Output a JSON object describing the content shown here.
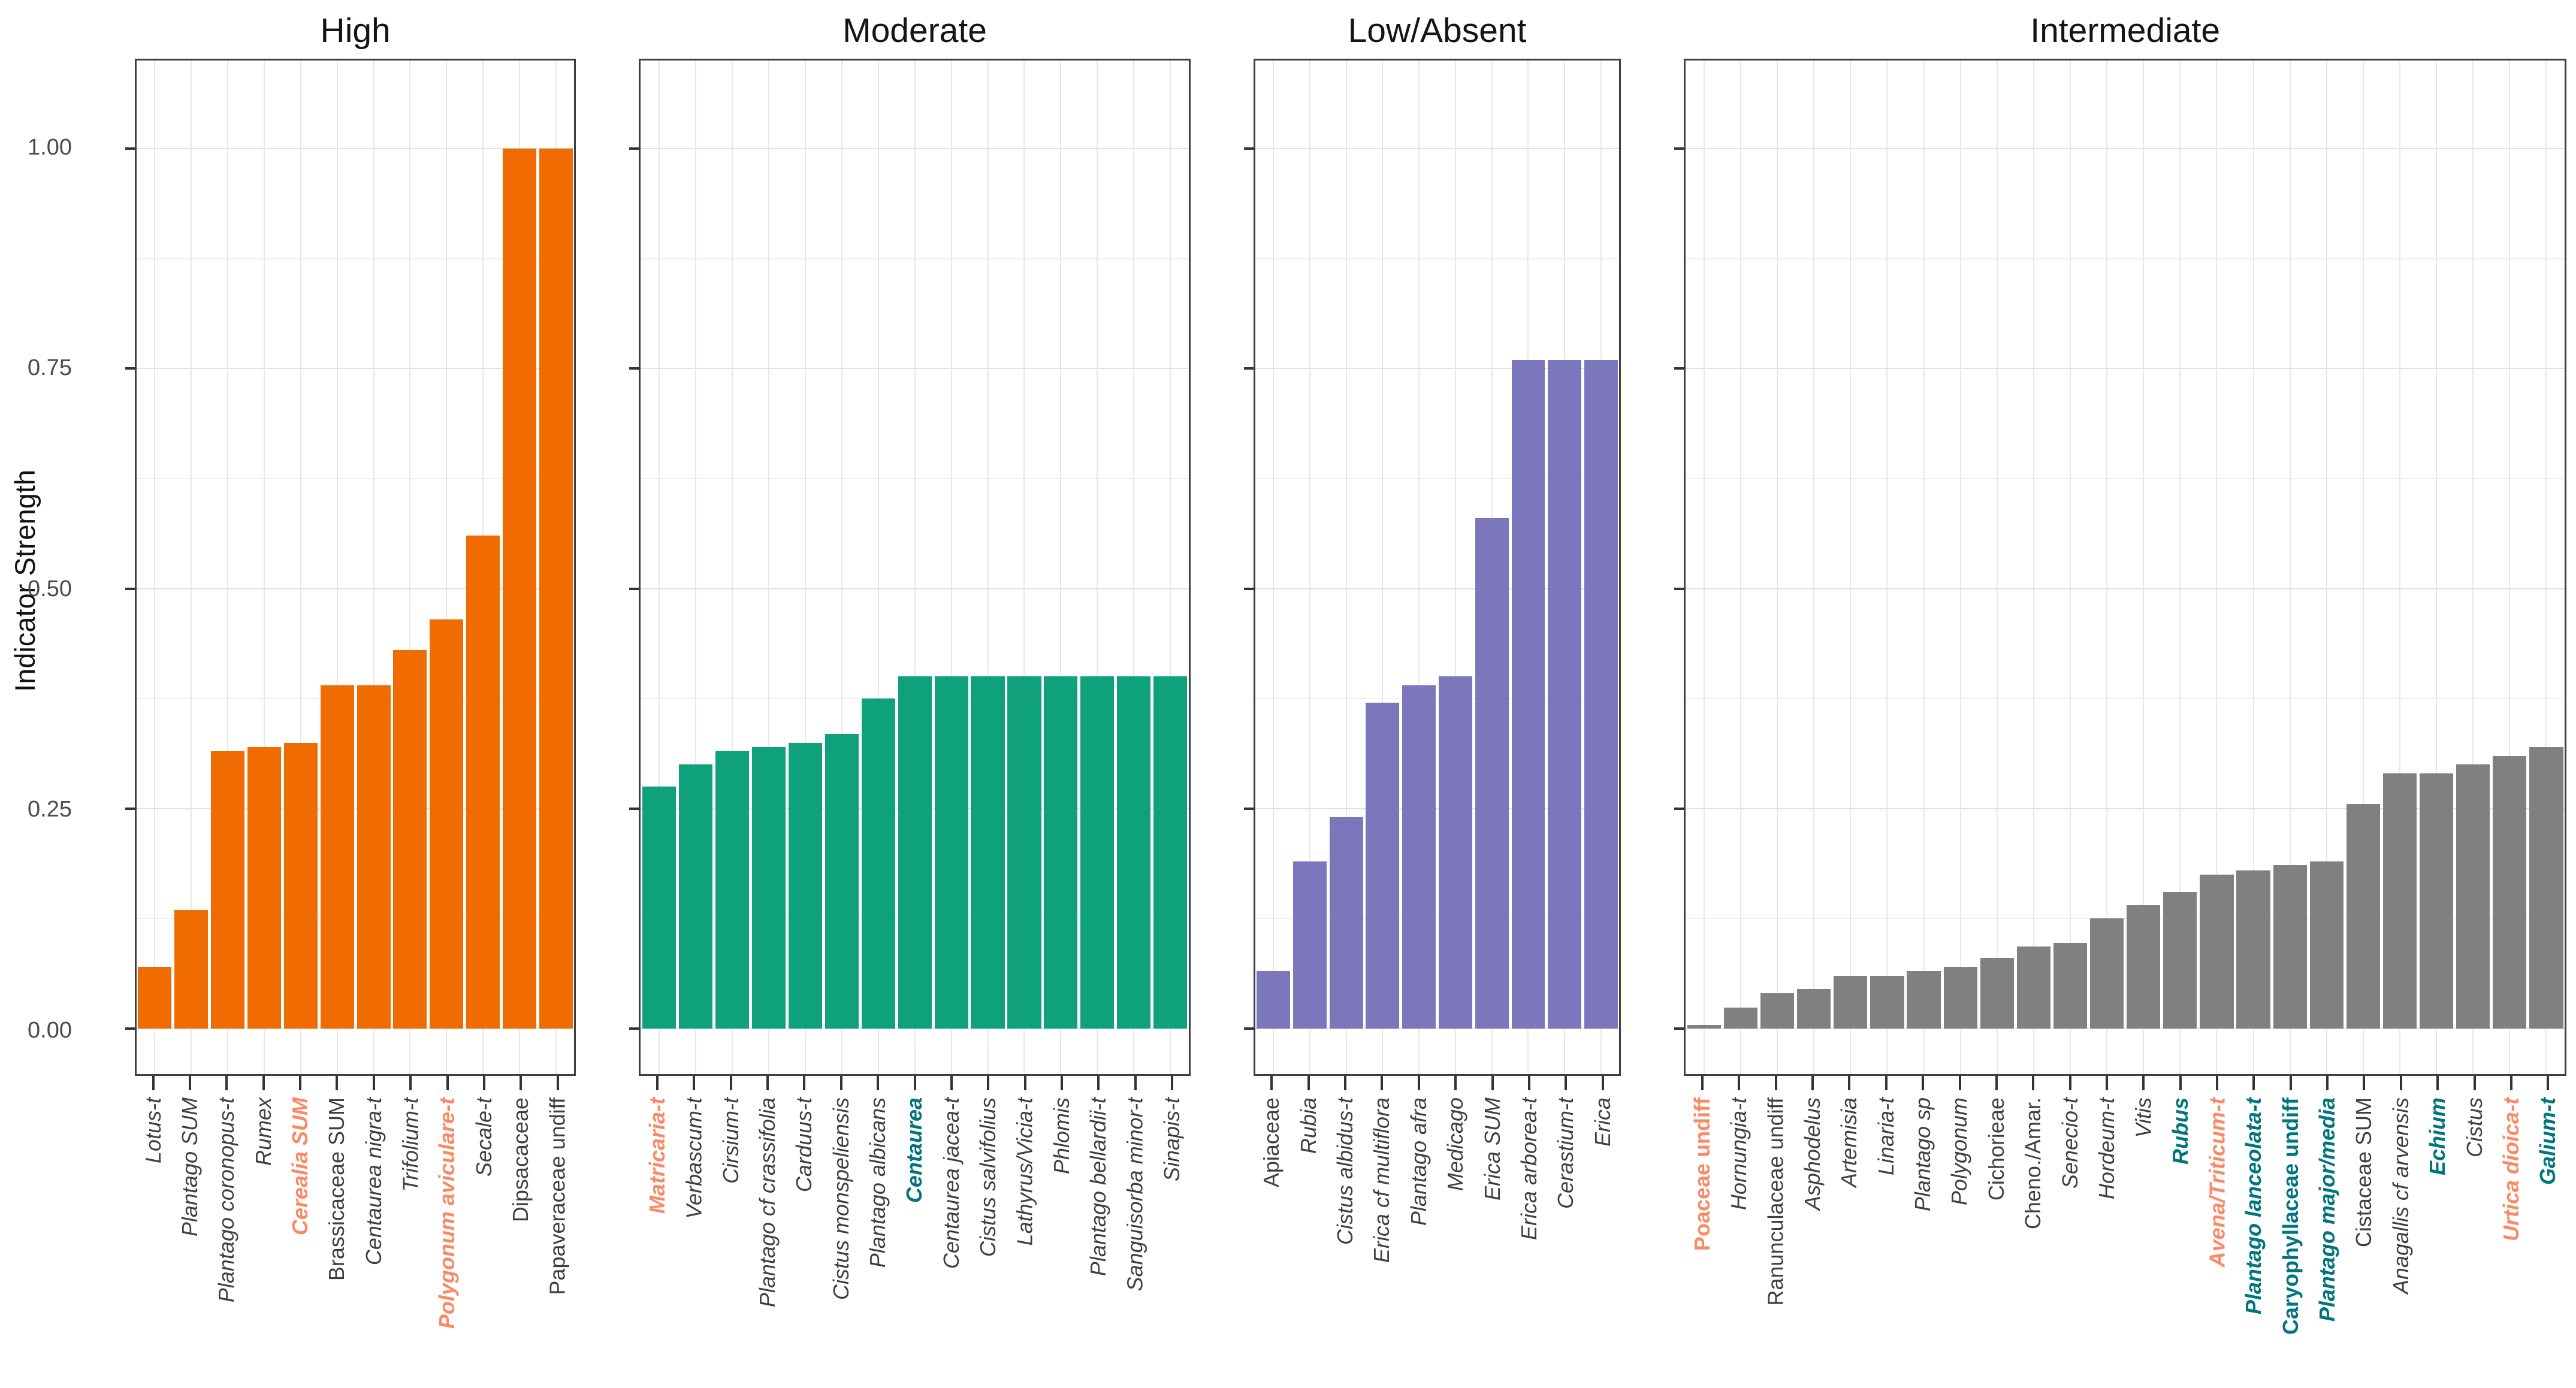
{
  "figure": {
    "y_axis_title": "Indicator Strength",
    "y_ticks": [
      {
        "label": "0.00",
        "v": 0
      },
      {
        "label": "0.25",
        "v": 0.25
      },
      {
        "label": "0.50",
        "v": 0.5
      },
      {
        "label": "0.75",
        "v": 0.75
      },
      {
        "label": "1.00",
        "v": 1
      }
    ]
  },
  "colors": {
    "axis_text": "#4a4a4a",
    "label_default": "#3f3f3f",
    "emphasis_orange": "#fa8a66",
    "emphasis_teal": "#00757d",
    "grid_major": "#e2e2e2",
    "grid_minor": "#f0f0f0",
    "panel_border": "#3f3f3f"
  },
  "chart_data": {
    "type": "bar",
    "ylabel": "Indicator Strength",
    "ylim": [
      0,
      1.05
    ],
    "grid": true,
    "legend_position": "none",
    "panels": [
      {
        "title": "High",
        "bar_color": "#f06c02",
        "bars": [
          {
            "label": "Lotus-t",
            "value": 0.07,
            "italic": true,
            "emphasis": null
          },
          {
            "label": "Plantago SUM",
            "value": 0.135,
            "italic": true,
            "emphasis": null
          },
          {
            "label": "Plantago coronopus-t",
            "value": 0.315,
            "italic": true,
            "emphasis": null
          },
          {
            "label": "Rumex",
            "value": 0.32,
            "italic": true,
            "emphasis": null
          },
          {
            "label": "Cerealia SUM",
            "value": 0.325,
            "italic": true,
            "emphasis": "orange"
          },
          {
            "label": "Brassicaceae SUM",
            "value": 0.39,
            "italic": false,
            "emphasis": null
          },
          {
            "label": "Centaurea nigra-t",
            "value": 0.39,
            "italic": true,
            "emphasis": null
          },
          {
            "label": "Trifolium-t",
            "value": 0.43,
            "italic": true,
            "emphasis": null
          },
          {
            "label": "Polygonum aviculare-t",
            "value": 0.465,
            "italic": true,
            "emphasis": "orange"
          },
          {
            "label": "Secale-t",
            "value": 0.56,
            "italic": true,
            "emphasis": null
          },
          {
            "label": "Dipsacaceae",
            "value": 1.0,
            "italic": false,
            "emphasis": null
          },
          {
            "label": "Papaveraceae undiff",
            "value": 1.0,
            "italic": false,
            "emphasis": null
          }
        ]
      },
      {
        "title": "Moderate",
        "bar_color": "#0fa17c",
        "bars": [
          {
            "label": "Matricaria-t",
            "value": 0.275,
            "italic": true,
            "emphasis": "orange"
          },
          {
            "label": "Verbascum-t",
            "value": 0.3,
            "italic": true,
            "emphasis": null
          },
          {
            "label": "Cirsium-t",
            "value": 0.315,
            "italic": true,
            "emphasis": null
          },
          {
            "label": "Plantago cf crassifolia",
            "value": 0.32,
            "italic": true,
            "emphasis": null
          },
          {
            "label": "Carduus-t",
            "value": 0.325,
            "italic": true,
            "emphasis": null
          },
          {
            "label": "Cistus monspeliensis",
            "value": 0.335,
            "italic": true,
            "emphasis": null
          },
          {
            "label": "Plantago albicans",
            "value": 0.375,
            "italic": true,
            "emphasis": null
          },
          {
            "label": "Centaurea",
            "value": 0.4,
            "italic": true,
            "emphasis": "teal"
          },
          {
            "label": "Centaurea jacea-t",
            "value": 0.4,
            "italic": true,
            "emphasis": null
          },
          {
            "label": "Cistus salvifolius",
            "value": 0.4,
            "italic": true,
            "emphasis": null
          },
          {
            "label": "Lathyrus/Vicia-t",
            "value": 0.4,
            "italic": true,
            "emphasis": null
          },
          {
            "label": "Phlomis",
            "value": 0.4,
            "italic": true,
            "emphasis": null
          },
          {
            "label": "Plantago bellardii-t",
            "value": 0.4,
            "italic": true,
            "emphasis": null
          },
          {
            "label": "Sanguisorba minor-t",
            "value": 0.4,
            "italic": true,
            "emphasis": null
          },
          {
            "label": "Sinapis-t",
            "value": 0.4,
            "italic": true,
            "emphasis": null
          }
        ]
      },
      {
        "title": "Low/Absent",
        "bar_color": "#7c76bc",
        "bars": [
          {
            "label": "Apiaceae",
            "value": 0.065,
            "italic": false,
            "emphasis": null
          },
          {
            "label": "Rubia",
            "value": 0.19,
            "italic": true,
            "emphasis": null
          },
          {
            "label": "Cistus albidus-t",
            "value": 0.24,
            "italic": true,
            "emphasis": null
          },
          {
            "label": "Erica cf multiflora",
            "value": 0.37,
            "italic": true,
            "emphasis": null
          },
          {
            "label": "Plantago afra",
            "value": 0.39,
            "italic": true,
            "emphasis": null
          },
          {
            "label": "Medicago",
            "value": 0.4,
            "italic": true,
            "emphasis": null
          },
          {
            "label": "Erica SUM",
            "value": 0.58,
            "italic": true,
            "emphasis": null
          },
          {
            "label": "Erica arborea-t",
            "value": 0.76,
            "italic": true,
            "emphasis": null
          },
          {
            "label": "Cerastium-t",
            "value": 0.76,
            "italic": true,
            "emphasis": null
          },
          {
            "label": "Erica",
            "value": 0.76,
            "italic": true,
            "emphasis": null
          }
        ]
      },
      {
        "title": "Intermediate",
        "bar_color": "#808080",
        "bars": [
          {
            "label": "Poaceae undiff",
            "value": 0.004,
            "italic": false,
            "emphasis": "orange"
          },
          {
            "label": "Hornungia-t",
            "value": 0.024,
            "italic": true,
            "emphasis": null
          },
          {
            "label": "Ranunculaceae undiff",
            "value": 0.04,
            "italic": false,
            "emphasis": null
          },
          {
            "label": "Asphodelus",
            "value": 0.045,
            "italic": true,
            "emphasis": null
          },
          {
            "label": "Artemisia",
            "value": 0.06,
            "italic": true,
            "emphasis": null
          },
          {
            "label": "Linaria-t",
            "value": 0.06,
            "italic": true,
            "emphasis": null
          },
          {
            "label": "Plantago sp",
            "value": 0.065,
            "italic": true,
            "emphasis": null
          },
          {
            "label": "Polygonum",
            "value": 0.07,
            "italic": true,
            "emphasis": null
          },
          {
            "label": "Cichorieae",
            "value": 0.08,
            "italic": false,
            "emphasis": null
          },
          {
            "label": "Cheno./Amar.",
            "value": 0.093,
            "italic": false,
            "emphasis": null
          },
          {
            "label": "Senecio-t",
            "value": 0.097,
            "italic": true,
            "emphasis": null
          },
          {
            "label": "Hordeum-t",
            "value": 0.125,
            "italic": true,
            "emphasis": null
          },
          {
            "label": "Vitis",
            "value": 0.14,
            "italic": true,
            "emphasis": null
          },
          {
            "label": "Rubus",
            "value": 0.155,
            "italic": true,
            "emphasis": "teal"
          },
          {
            "label": "Avena/Triticum-t",
            "value": 0.175,
            "italic": true,
            "emphasis": "orange"
          },
          {
            "label": "Plantago lanceolata-t",
            "value": 0.18,
            "italic": true,
            "emphasis": "teal"
          },
          {
            "label": "Caryophyllaceae undiff",
            "value": 0.186,
            "italic": false,
            "emphasis": "teal"
          },
          {
            "label": "Plantago major/media",
            "value": 0.19,
            "italic": true,
            "emphasis": "teal"
          },
          {
            "label": "Cistaceae SUM",
            "value": 0.255,
            "italic": false,
            "emphasis": null
          },
          {
            "label": "Anagallis cf arvensis",
            "value": 0.29,
            "italic": true,
            "emphasis": null
          },
          {
            "label": "Echium",
            "value": 0.29,
            "italic": true,
            "emphasis": "teal"
          },
          {
            "label": "Cistus",
            "value": 0.3,
            "italic": true,
            "emphasis": null
          },
          {
            "label": "Urtica dioica-t",
            "value": 0.31,
            "italic": true,
            "emphasis": "orange"
          },
          {
            "label": "Galium-t",
            "value": 0.32,
            "italic": true,
            "emphasis": "teal"
          }
        ]
      }
    ]
  }
}
